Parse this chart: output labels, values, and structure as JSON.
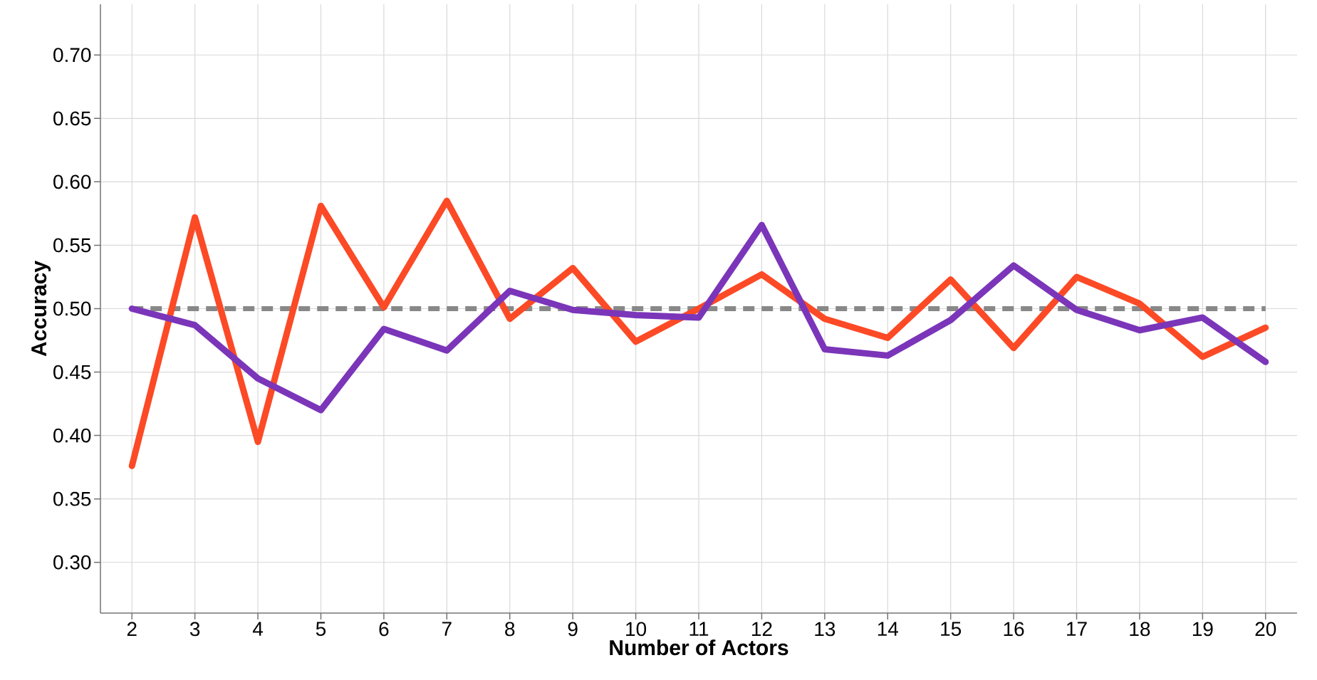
{
  "chart_data": {
    "type": "line",
    "xlabel": "Number of Actors",
    "ylabel": "Accuracy",
    "x": [
      2,
      3,
      4,
      5,
      6,
      7,
      8,
      9,
      10,
      11,
      12,
      13,
      14,
      15,
      16,
      17,
      18,
      19,
      20
    ],
    "series": [
      {
        "color": "#fc4a26",
        "values": [
          0.376,
          0.572,
          0.395,
          0.581,
          0.501,
          0.585,
          0.492,
          0.532,
          0.474,
          0.5,
          0.527,
          0.492,
          0.477,
          0.523,
          0.469,
          0.525,
          0.504,
          0.462,
          0.485
        ]
      },
      {
        "color": "#7b35b9",
        "values": [
          0.5,
          0.487,
          0.445,
          0.42,
          0.484,
          0.467,
          0.514,
          0.499,
          0.495,
          0.493,
          0.566,
          0.468,
          0.463,
          0.491,
          0.534,
          0.499,
          0.483,
          0.493,
          0.458
        ]
      }
    ],
    "ref_lines": [
      {
        "axis": "y",
        "value": 0.5,
        "color": "#888888",
        "line_style": "dashed"
      }
    ],
    "xlim": [
      1.5,
      20.5
    ],
    "ylim": [
      0.26,
      0.74
    ],
    "xticks": [
      2,
      3,
      4,
      5,
      6,
      7,
      8,
      9,
      10,
      11,
      12,
      13,
      14,
      15,
      16,
      17,
      18,
      19,
      20
    ],
    "yticks": [
      {
        "value": 0.3,
        "label": "0.30"
      },
      {
        "value": 0.35,
        "label": "0.35"
      },
      {
        "value": 0.4,
        "label": "0.40"
      },
      {
        "value": 0.45,
        "label": "0.45"
      },
      {
        "value": 0.5,
        "label": "0.50"
      },
      {
        "value": 0.55,
        "label": "0.55"
      },
      {
        "value": 0.6,
        "label": "0.60"
      },
      {
        "value": 0.65,
        "label": "0.65"
      },
      {
        "value": 0.7,
        "label": "0.70"
      }
    ],
    "grid": true,
    "marker": "none",
    "line_style": "solid"
  }
}
